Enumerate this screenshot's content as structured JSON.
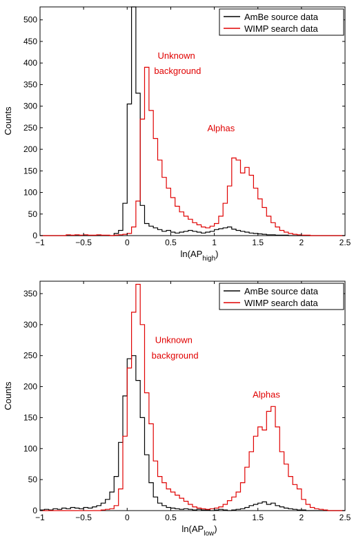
{
  "chart_data": [
    {
      "type": "line",
      "step": true,
      "title": "",
      "xlabel": "ln(AP",
      "xlabel_sub": "high",
      "xlabel_close": ")",
      "ylabel": "Counts",
      "xlim": [
        -1,
        2.5
      ],
      "ylim": [
        0,
        530
      ],
      "xticks": [
        -1,
        -0.5,
        0,
        0.5,
        1,
        1.5,
        2,
        2.5
      ],
      "xtick_labels": [
        "−1",
        "−0.5",
        "0",
        "0.5",
        "1",
        "1.5",
        "2",
        "2.5"
      ],
      "yticks": [
        0,
        50,
        100,
        150,
        200,
        250,
        300,
        350,
        400,
        450,
        500
      ],
      "ytick_labels": [
        "0",
        "50",
        "100",
        "150",
        "200",
        "250",
        "300",
        "350",
        "400",
        "450",
        "500"
      ],
      "legend": "top-right",
      "grid": false,
      "annotations": [
        {
          "text": "Unknown",
          "x": 0.35,
          "y": 410,
          "color": "#e00000"
        },
        {
          "text": "background",
          "x": 0.31,
          "y": 375,
          "color": "#e00000"
        },
        {
          "text": "Alphas",
          "x": 0.92,
          "y": 242,
          "color": "#e00000"
        }
      ],
      "series": [
        {
          "name": "AmBe source data",
          "color": "#000000",
          "x": [
            -1.0,
            -0.95,
            -0.9,
            -0.85,
            -0.8,
            -0.75,
            -0.7,
            -0.65,
            -0.6,
            -0.55,
            -0.5,
            -0.45,
            -0.4,
            -0.35,
            -0.3,
            -0.25,
            -0.2,
            -0.15,
            -0.1,
            -0.05,
            0.0,
            0.05,
            0.1,
            0.15,
            0.2,
            0.25,
            0.3,
            0.35,
            0.4,
            0.45,
            0.5,
            0.55,
            0.6,
            0.65,
            0.7,
            0.75,
            0.8,
            0.85,
            0.9,
            0.95,
            1.0,
            1.05,
            1.1,
            1.15,
            1.2,
            1.25,
            1.3,
            1.35,
            1.4,
            1.45,
            1.5,
            1.55,
            1.6,
            1.65,
            1.7,
            1.75,
            1.8,
            1.85,
            1.9,
            1.95,
            2.0,
            2.05,
            2.1,
            2.15,
            2.2,
            2.25,
            2.3,
            2.35,
            2.4,
            2.45,
            2.5
          ],
          "y": [
            0,
            0,
            0,
            0,
            0,
            0,
            0,
            0,
            0,
            0,
            0,
            0,
            0,
            0,
            0,
            0,
            0,
            5,
            12,
            75,
            305,
            530,
            330,
            70,
            28,
            22,
            18,
            14,
            10,
            12,
            8,
            6,
            8,
            10,
            12,
            10,
            8,
            6,
            8,
            10,
            14,
            16,
            18,
            20,
            15,
            12,
            10,
            8,
            6,
            5,
            4,
            3,
            2,
            2,
            1,
            1,
            1,
            0,
            0,
            0,
            0,
            0,
            0,
            0,
            0,
            0,
            0,
            0,
            0,
            0,
            0
          ]
        },
        {
          "name": "WIMP search data",
          "color": "#e00000",
          "x": [
            -1.0,
            -0.95,
            -0.9,
            -0.85,
            -0.8,
            -0.75,
            -0.7,
            -0.65,
            -0.6,
            -0.55,
            -0.5,
            -0.45,
            -0.4,
            -0.35,
            -0.3,
            -0.25,
            -0.2,
            -0.15,
            -0.1,
            -0.05,
            0.0,
            0.05,
            0.1,
            0.15,
            0.2,
            0.25,
            0.3,
            0.35,
            0.4,
            0.45,
            0.5,
            0.55,
            0.6,
            0.65,
            0.7,
            0.75,
            0.8,
            0.85,
            0.9,
            0.95,
            1.0,
            1.05,
            1.1,
            1.15,
            1.2,
            1.25,
            1.3,
            1.35,
            1.4,
            1.45,
            1.5,
            1.55,
            1.6,
            1.65,
            1.7,
            1.75,
            1.8,
            1.85,
            1.9,
            1.95,
            2.0,
            2.05,
            2.1,
            2.15,
            2.2,
            2.25,
            2.3,
            2.35,
            2.4,
            2.45,
            2.5
          ],
          "y": [
            0,
            0,
            0,
            0,
            0,
            0,
            2,
            1,
            2,
            1,
            2,
            1,
            1,
            2,
            1,
            1,
            0,
            1,
            2,
            3,
            5,
            20,
            80,
            270,
            390,
            290,
            225,
            175,
            135,
            110,
            88,
            68,
            55,
            45,
            38,
            30,
            25,
            20,
            18,
            22,
            28,
            45,
            75,
            115,
            180,
            175,
            145,
            158,
            140,
            110,
            85,
            65,
            45,
            30,
            20,
            12,
            8,
            5,
            3,
            2,
            1,
            1,
            0,
            0,
            0,
            0,
            0,
            0,
            0,
            0,
            0
          ]
        }
      ]
    },
    {
      "type": "line",
      "step": true,
      "title": "",
      "xlabel": "ln(AP",
      "xlabel_sub": "low",
      "xlabel_close": ")",
      "ylabel": "Counts",
      "xlim": [
        -1,
        2.5
      ],
      "ylim": [
        0,
        370
      ],
      "xticks": [
        -1,
        -0.5,
        0,
        0.5,
        1,
        1.5,
        2,
        2.5
      ],
      "xtick_labels": [
        "−1",
        "−0.5",
        "0",
        "0.5",
        "1",
        "1.5",
        "2",
        "2.5"
      ],
      "yticks": [
        0,
        50,
        100,
        150,
        200,
        250,
        300,
        350
      ],
      "ytick_labels": [
        "0",
        "50",
        "100",
        "150",
        "200",
        "250",
        "300",
        "350"
      ],
      "legend": "top-right",
      "grid": false,
      "annotations": [
        {
          "text": "Unknown",
          "x": 0.32,
          "y": 270,
          "color": "#e00000"
        },
        {
          "text": "background",
          "x": 0.28,
          "y": 245,
          "color": "#e00000"
        },
        {
          "text": "Alphas",
          "x": 1.44,
          "y": 182,
          "color": "#e00000"
        }
      ],
      "series": [
        {
          "name": "AmBe source data",
          "color": "#000000",
          "x": [
            -1.0,
            -0.95,
            -0.9,
            -0.85,
            -0.8,
            -0.75,
            -0.7,
            -0.65,
            -0.6,
            -0.55,
            -0.5,
            -0.45,
            -0.4,
            -0.35,
            -0.3,
            -0.25,
            -0.2,
            -0.15,
            -0.1,
            -0.05,
            0.0,
            0.05,
            0.1,
            0.15,
            0.2,
            0.25,
            0.3,
            0.35,
            0.4,
            0.45,
            0.5,
            0.55,
            0.6,
            0.65,
            0.7,
            0.75,
            0.8,
            0.85,
            0.9,
            0.95,
            1.0,
            1.05,
            1.1,
            1.15,
            1.2,
            1.25,
            1.3,
            1.35,
            1.4,
            1.45,
            1.5,
            1.55,
            1.6,
            1.65,
            1.7,
            1.75,
            1.8,
            1.85,
            1.9,
            1.95,
            2.0,
            2.05,
            2.1,
            2.15,
            2.2,
            2.25,
            2.3,
            2.35,
            2.4,
            2.45,
            2.5
          ],
          "y": [
            1,
            2,
            1,
            3,
            2,
            4,
            3,
            5,
            4,
            3,
            5,
            4,
            6,
            8,
            12,
            18,
            30,
            55,
            110,
            185,
            245,
            250,
            210,
            150,
            90,
            45,
            22,
            12,
            8,
            5,
            4,
            3,
            2,
            3,
            2,
            1,
            2,
            1,
            1,
            0,
            1,
            2,
            1,
            0,
            1,
            2,
            3,
            5,
            8,
            10,
            12,
            14,
            10,
            12,
            8,
            6,
            4,
            3,
            2,
            1,
            1,
            0,
            0,
            0,
            0,
            0,
            0,
            0,
            0,
            0,
            0
          ]
        },
        {
          "name": "WIMP search data",
          "color": "#e00000",
          "x": [
            -1.0,
            -0.95,
            -0.9,
            -0.85,
            -0.8,
            -0.75,
            -0.7,
            -0.65,
            -0.6,
            -0.55,
            -0.5,
            -0.45,
            -0.4,
            -0.35,
            -0.3,
            -0.25,
            -0.2,
            -0.15,
            -0.1,
            -0.05,
            0.0,
            0.05,
            0.1,
            0.15,
            0.2,
            0.25,
            0.3,
            0.35,
            0.4,
            0.45,
            0.5,
            0.55,
            0.6,
            0.65,
            0.7,
            0.75,
            0.8,
            0.85,
            0.9,
            0.95,
            1.0,
            1.05,
            1.1,
            1.15,
            1.2,
            1.25,
            1.3,
            1.35,
            1.4,
            1.45,
            1.5,
            1.55,
            1.6,
            1.65,
            1.7,
            1.75,
            1.8,
            1.85,
            1.9,
            1.95,
            2.0,
            2.05,
            2.1,
            2.15,
            2.2,
            2.25,
            2.3,
            2.35,
            2.4,
            2.45,
            2.5
          ],
          "y": [
            0,
            0,
            0,
            0,
            0,
            0,
            0,
            0,
            0,
            0,
            0,
            0,
            0,
            0,
            1,
            2,
            3,
            8,
            35,
            120,
            230,
            320,
            365,
            300,
            190,
            140,
            80,
            55,
            45,
            35,
            30,
            25,
            20,
            15,
            10,
            6,
            4,
            3,
            2,
            3,
            4,
            6,
            10,
            16,
            22,
            30,
            45,
            70,
            95,
            120,
            135,
            130,
            160,
            168,
            135,
            95,
            75,
            55,
            42,
            35,
            18,
            10,
            5,
            3,
            2,
            1,
            0,
            0,
            0,
            0,
            0
          ]
        }
      ]
    }
  ]
}
